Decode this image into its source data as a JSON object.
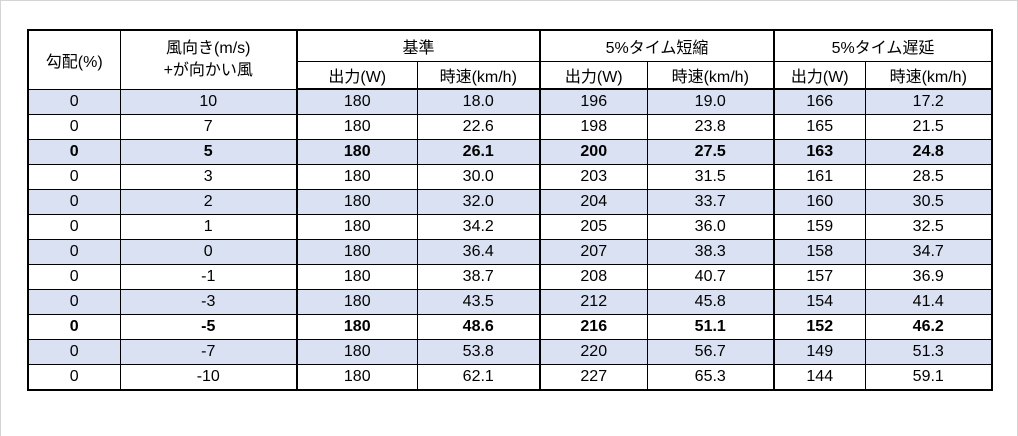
{
  "page": {
    "background": "#ffffff",
    "frame_color": "#d4d4d4"
  },
  "chart_data": {
    "type": "table",
    "border_color": "#000000",
    "stripe_color": "#d9e1f2",
    "header": {
      "gradient_label": "勾配(%)",
      "wind_line1": "風向き(m/s)",
      "wind_line2": "+が向かい風",
      "groups": [
        {
          "label": "基準",
          "sub": [
            "出力(W)",
            "時速(km/h)"
          ]
        },
        {
          "label": "5%タイム短縮",
          "sub": [
            "出力(W)",
            "時速(km/h)"
          ]
        },
        {
          "label": "5%タイム遅延",
          "sub": [
            "出力(W)",
            "時速(km/h)"
          ]
        }
      ]
    },
    "rows": [
      {
        "cells": [
          "0",
          "10",
          "180",
          "18.0",
          "196",
          "19.0",
          "166",
          "17.2"
        ],
        "shaded": true,
        "bold": false
      },
      {
        "cells": [
          "0",
          "7",
          "180",
          "22.6",
          "198",
          "23.8",
          "165",
          "21.5"
        ],
        "shaded": false,
        "bold": false
      },
      {
        "cells": [
          "0",
          "5",
          "180",
          "26.1",
          "200",
          "27.5",
          "163",
          "24.8"
        ],
        "shaded": true,
        "bold": true
      },
      {
        "cells": [
          "0",
          "3",
          "180",
          "30.0",
          "203",
          "31.5",
          "161",
          "28.5"
        ],
        "shaded": false,
        "bold": false
      },
      {
        "cells": [
          "0",
          "2",
          "180",
          "32.0",
          "204",
          "33.7",
          "160",
          "30.5"
        ],
        "shaded": true,
        "bold": false
      },
      {
        "cells": [
          "0",
          "1",
          "180",
          "34.2",
          "205",
          "36.0",
          "159",
          "32.5"
        ],
        "shaded": false,
        "bold": false
      },
      {
        "cells": [
          "0",
          "0",
          "180",
          "36.4",
          "207",
          "38.3",
          "158",
          "34.7"
        ],
        "shaded": true,
        "bold": false
      },
      {
        "cells": [
          "0",
          "-1",
          "180",
          "38.7",
          "208",
          "40.7",
          "157",
          "36.9"
        ],
        "shaded": false,
        "bold": false
      },
      {
        "cells": [
          "0",
          "-3",
          "180",
          "43.5",
          "212",
          "45.8",
          "154",
          "41.4"
        ],
        "shaded": true,
        "bold": false
      },
      {
        "cells": [
          "0",
          "-5",
          "180",
          "48.6",
          "216",
          "51.1",
          "152",
          "46.2"
        ],
        "shaded": false,
        "bold": true
      },
      {
        "cells": [
          "0",
          "-7",
          "180",
          "53.8",
          "220",
          "56.7",
          "149",
          "51.3"
        ],
        "shaded": true,
        "bold": false
      },
      {
        "cells": [
          "0",
          "-10",
          "180",
          "62.1",
          "227",
          "65.3",
          "144",
          "59.1"
        ],
        "shaded": false,
        "bold": false
      }
    ]
  }
}
